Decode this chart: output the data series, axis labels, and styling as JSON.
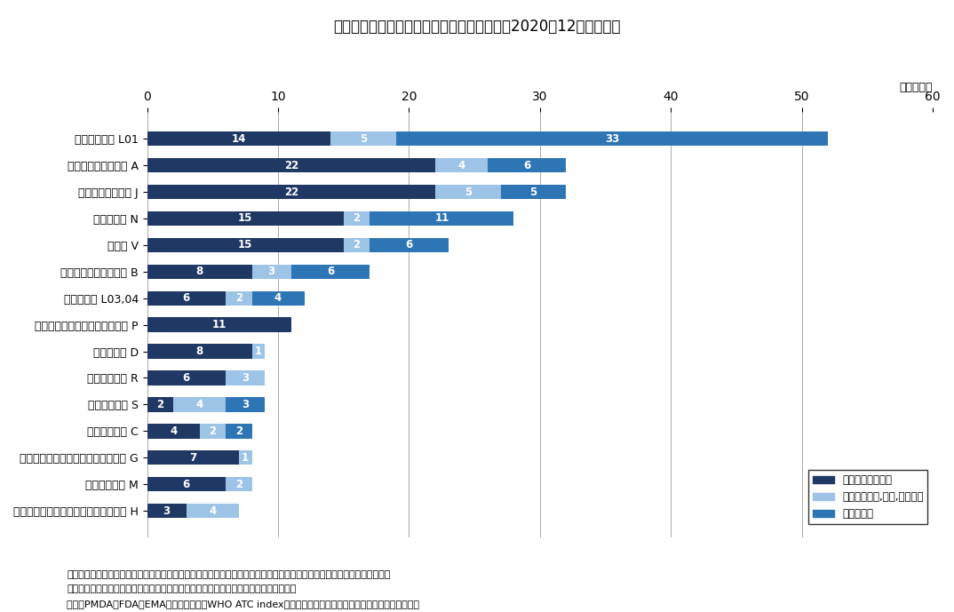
{
  "title": "図７　国内未承認薬の薬効分類と開発状況（2020年12月末時点）",
  "ylabel_unit": "（品目数）",
  "categories": [
    "抗悪性腫瘍剤 L01",
    "消化管及び代謝用剤 A",
    "全身性抗感染症薬 J",
    "神経系用剤 N",
    "その他 V",
    "血液及び造血器官用剤 B",
    "免疫調節剤 L03,04",
    "抗寄生虫薬、殺虫剤及び忌避剤 P",
    "皮膚科用剤 D",
    "呼吸器官用剤 R",
    "感覚器官用剤 S",
    "循環器官用剤 C",
    "泌尿、生殖器官用剤及び性ホルモン G",
    "筋骨格筋用剤 M",
    "全身性ホルモン剤；性ホルモン剤除く H"
  ],
  "series1_label": "国内開発情報なし",
  "series2_label": "国内開発中止,中断,続報なし",
  "series3_label": "国内開発中",
  "series1_values": [
    14,
    22,
    22,
    15,
    15,
    8,
    6,
    11,
    8,
    6,
    2,
    4,
    7,
    6,
    3
  ],
  "series2_values": [
    5,
    4,
    5,
    2,
    2,
    3,
    2,
    0,
    1,
    3,
    4,
    2,
    1,
    2,
    4
  ],
  "series3_values": [
    33,
    6,
    5,
    11,
    6,
    6,
    4,
    0,
    0,
    0,
    3,
    2,
    0,
    0,
    0
  ],
  "color1": "#1F3864",
  "color2": "#9DC3E6",
  "color3": "#2E75B6",
  "xlim": [
    0,
    60
  ],
  "xticks": [
    0,
    10,
    20,
    30,
    40,
    50,
    60
  ],
  "note_line1": "注：開発状況については「明日の新薬」の記載に準じる。開発ステージ情報を得てから３年程度経過したものに対して、開",
  "note_line2": "　　発継続に関する情報が確認できなかった品目に関しては「続報なし」としている。",
  "source_line": "出所：PMDA、FDA、EMAの各公開情報、WHO ATC index、明日の新薬をもとに医薬産業政策研究所にて作成"
}
